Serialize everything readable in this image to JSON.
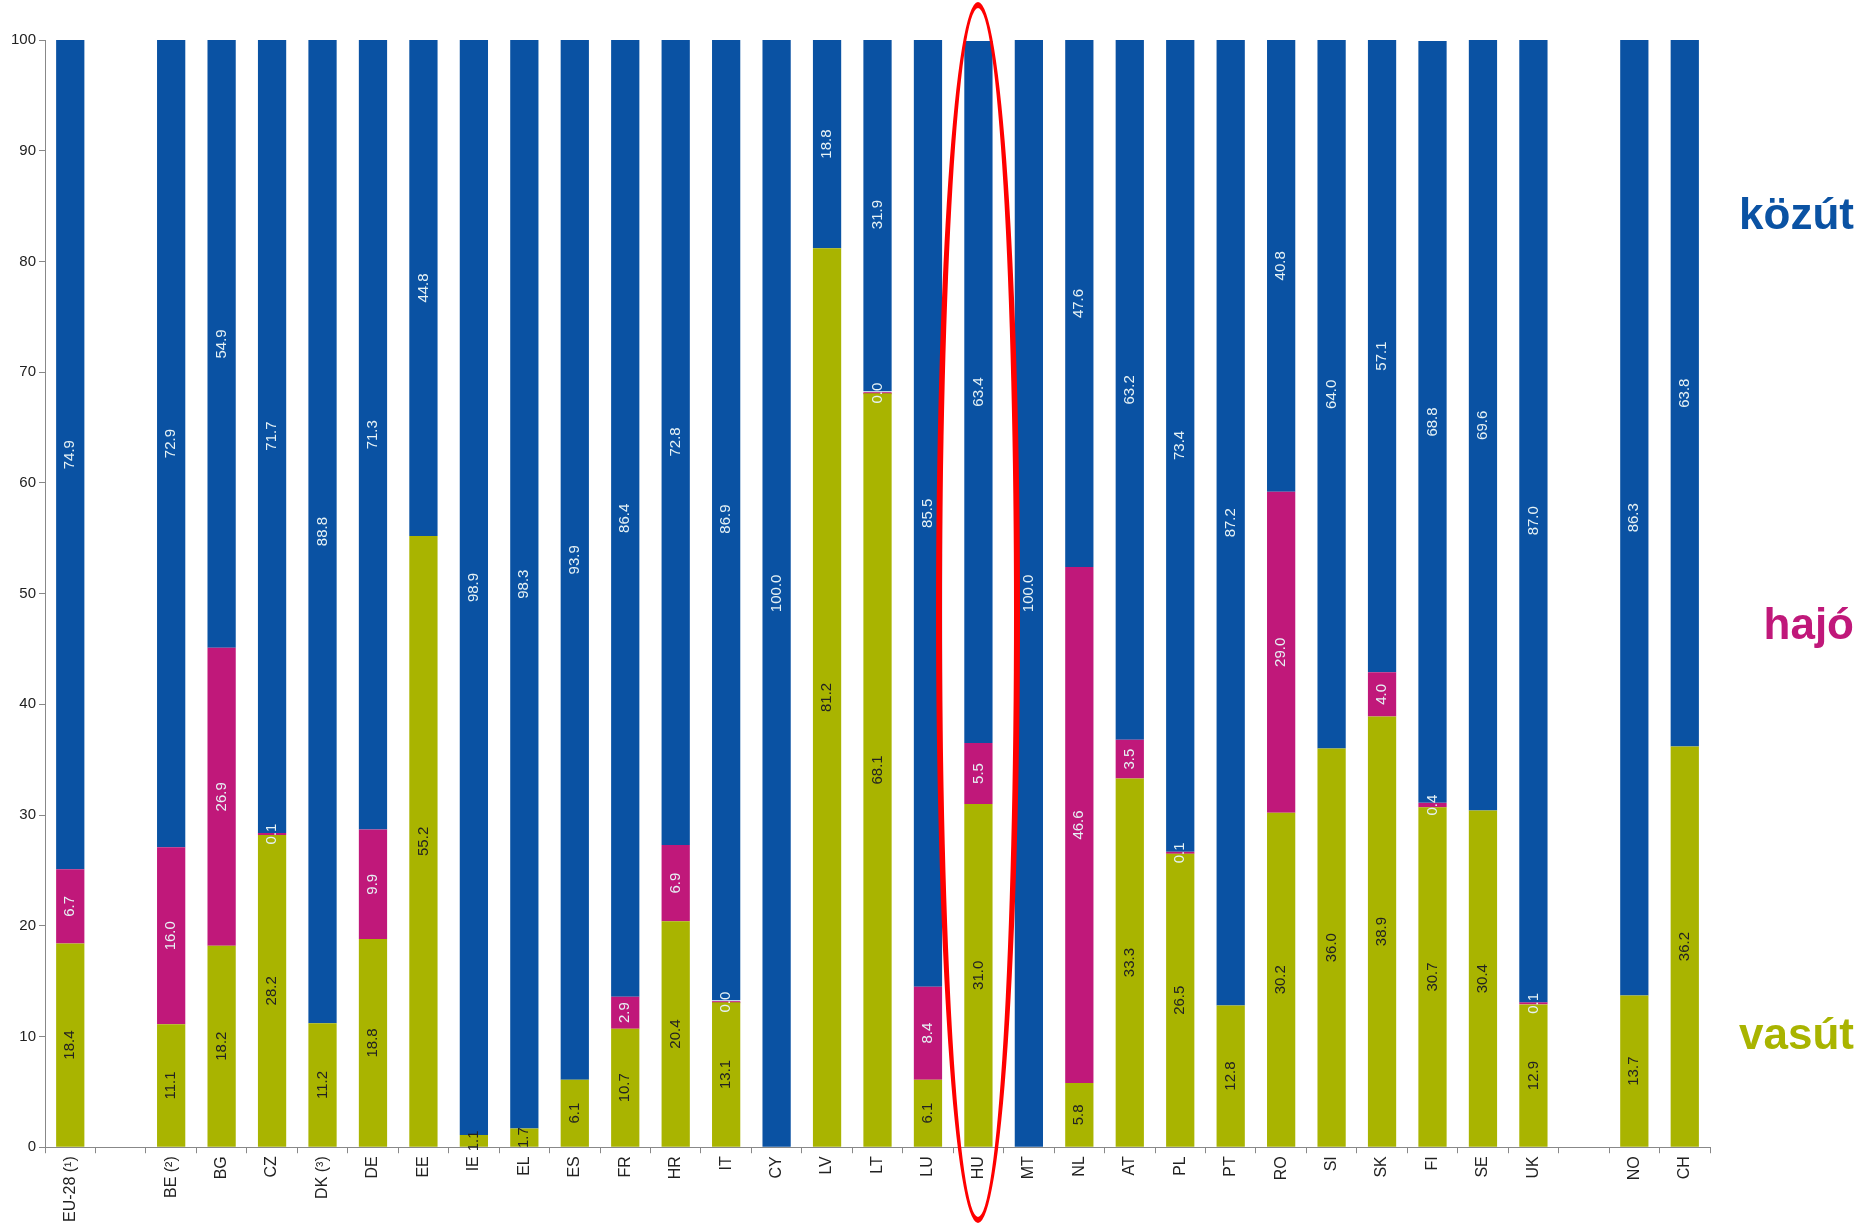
{
  "chart_data": {
    "type": "bar",
    "stacked": true,
    "legend": "right",
    "grid": false,
    "data_labels": false,
    "categories": [
      "EU-28 (¹)",
      null,
      "BE (²)",
      "BG",
      "CZ",
      "DK (³)",
      "DE",
      "EE",
      "IE",
      "EL",
      "ES",
      "FR",
      "HR",
      "IT",
      "CY",
      "LV",
      "LT",
      "LU",
      "HU",
      "MT",
      "NL",
      "AT",
      "PL",
      "PT",
      "RO",
      "SI",
      "SK",
      "FI",
      "SE",
      "UK",
      null,
      "NO",
      "CH"
    ],
    "ylim": [
      0,
      100
    ],
    "yticks": [
      0,
      10,
      20,
      30,
      40,
      50,
      60,
      70,
      80,
      90,
      100
    ],
    "series": [
      {
        "name": "vasút",
        "color": "#a9b400",
        "values": [
          18.4,
          null,
          11.1,
          18.2,
          28.2,
          11.2,
          18.8,
          55.2,
          1.1,
          1.7,
          6.1,
          10.7,
          20.4,
          13.1,
          null,
          81.2,
          68.1,
          6.1,
          31.0,
          null,
          5.8,
          33.3,
          26.5,
          12.8,
          30.2,
          36.0,
          38.9,
          30.7,
          30.4,
          12.9,
          null,
          13.7,
          36.2
        ],
        "value_labels": [
          "18.4",
          null,
          "11.1",
          "18.2",
          "28.2",
          "11.2",
          "18.8",
          "55.2",
          "1.1",
          "1.7",
          "6.1",
          "10.7",
          "20.4",
          "13.1",
          null,
          "81.2",
          "68.1",
          "6.1",
          "31.0",
          null,
          "5.8",
          "33.3",
          "26.5",
          "12.8",
          "30.2",
          "36.0",
          "38.9",
          "30.7",
          "30.4",
          "12.9",
          null,
          "13.7",
          "36.2"
        ]
      },
      {
        "name": "hajó",
        "color": "#c0187a",
        "values": [
          6.7,
          null,
          16.0,
          26.9,
          0.1,
          null,
          9.9,
          null,
          null,
          null,
          null,
          2.9,
          6.9,
          0.0,
          null,
          null,
          0.0,
          8.4,
          5.5,
          null,
          46.6,
          3.5,
          0.1,
          null,
          29.0,
          null,
          4.0,
          0.4,
          null,
          0.1,
          null,
          null,
          null
        ],
        "value_labels": [
          "6.7",
          null,
          "16.0",
          "26.9",
          "0.1",
          null,
          "9.9",
          null,
          null,
          null,
          null,
          "2.9",
          "6.9",
          "0.0",
          null,
          null,
          "0.0",
          "8.4",
          "5.5",
          null,
          "46.6",
          "3.5",
          "0.1",
          null,
          "29.0",
          null,
          "4.0",
          "0.4",
          null,
          "0.1",
          null,
          null,
          null
        ]
      },
      {
        "name": "közút",
        "color": "#0a52a3",
        "values": [
          74.9,
          null,
          72.9,
          54.9,
          71.7,
          88.8,
          71.3,
          44.8,
          98.9,
          98.3,
          93.9,
          86.4,
          72.8,
          86.9,
          100.0,
          18.8,
          31.9,
          85.5,
          63.4,
          100.0,
          47.6,
          63.2,
          73.4,
          87.2,
          40.8,
          64.0,
          57.1,
          68.8,
          69.6,
          87.0,
          null,
          86.3,
          63.8
        ],
        "value_labels": [
          "74.9",
          null,
          "72.9",
          "54.9",
          "71.7",
          "88.8",
          "71.3",
          "44.8",
          "98.9",
          "98.3",
          "93.9",
          "86.4",
          "72.8",
          "86.9",
          "100.0",
          "18.8",
          "31.9",
          "85.5",
          "63.4",
          "100.0",
          "47.6",
          "63.2",
          "73.4",
          "87.2",
          "40.8",
          "64.0",
          "57.1",
          "68.8",
          "69.6",
          "87.0",
          null,
          "86.3",
          "63.8"
        ]
      }
    ]
  }
}
